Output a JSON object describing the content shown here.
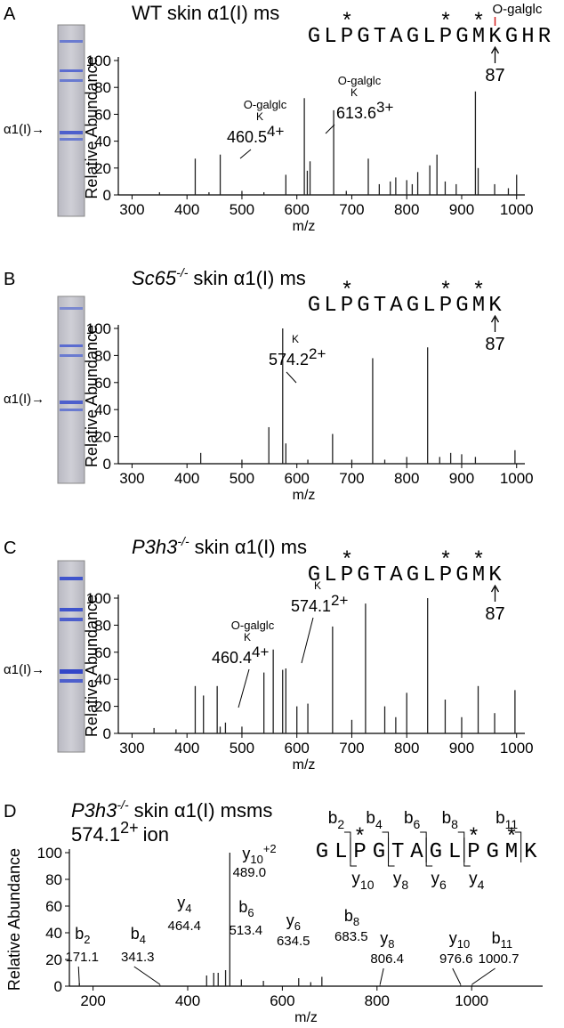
{
  "chart_data": [
    {
      "type": "spectrum",
      "panel": "A",
      "title": {
        "text": "WT skin α1(I) ms"
      },
      "gel_label": "α1(I)→",
      "xlabel": "m/z",
      "ylabel": "Relative Abundance",
      "color": "#222222",
      "xlim": [
        275,
        1015
      ],
      "ylim": [
        0,
        100
      ],
      "xticks": [
        300,
        400,
        500,
        600,
        700,
        800,
        900,
        1000
      ],
      "yticks": [
        0,
        20,
        40,
        60,
        80,
        100
      ],
      "x": [
        350,
        415,
        440,
        460.5,
        500,
        540,
        580,
        613.6,
        619,
        624,
        667,
        690,
        730,
        750,
        770,
        780,
        800,
        810,
        820,
        842,
        855,
        870,
        890,
        925,
        930,
        960,
        985,
        1000
      ],
      "values": [
        2,
        27,
        2,
        30,
        3,
        2,
        15,
        72,
        18,
        25,
        63,
        3,
        27,
        8,
        10,
        13,
        11,
        8,
        17,
        22,
        30,
        10,
        8,
        77,
        20,
        8,
        5,
        15
      ],
      "annotations": [
        {
          "x": 460.5,
          "text": "460.5",
          "charge": "4+",
          "residue": "K",
          "mod": "O-galglc"
        },
        {
          "x": 613.6,
          "text": "613.6",
          "charge": "3+",
          "residue": "K",
          "mod": "O-galglc"
        }
      ],
      "residues": [
        "G",
        "L",
        "P",
        "G",
        "T",
        "A",
        "G",
        "L",
        "P",
        "G",
        "M"
      ],
      "above": [
        null,
        null,
        "*",
        null,
        null,
        null,
        null,
        null,
        "*",
        null,
        "*"
      ],
      "site": {
        "residue": "K",
        "number": "87",
        "mod": "O-galglc",
        "color": "#d42020"
      },
      "tail": [
        "G",
        "H",
        "R"
      ]
    },
    {
      "type": "spectrum",
      "panel": "B",
      "title": {
        "gene": "Sc65",
        "genotype": "-/-",
        "text": "skin α1(I) ms"
      },
      "gel_label": "α1(I)→",
      "xlabel": "m/z",
      "ylabel": "Relative Abundance",
      "color": "#222222",
      "xlim": [
        275,
        1015
      ],
      "ylim": [
        0,
        100
      ],
      "xticks": [
        300,
        400,
        500,
        600,
        700,
        800,
        900,
        1000
      ],
      "yticks": [
        0,
        20,
        40,
        60,
        80,
        100
      ],
      "x": [
        425,
        500,
        549,
        574.2,
        580,
        620,
        665,
        700,
        738,
        760,
        800,
        838,
        860,
        880,
        900,
        925,
        997
      ],
      "values": [
        8,
        3,
        27,
        100,
        15,
        3,
        22,
        3,
        78,
        3,
        5,
        86,
        5,
        8,
        7,
        5,
        10
      ],
      "annotations": [
        {
          "x": 574.2,
          "text": "574.2",
          "charge": "2+",
          "residue": "K"
        }
      ],
      "residues": [
        "G",
        "L",
        "P",
        "G",
        "T",
        "A",
        "G",
        "L",
        "P",
        "G",
        "M"
      ],
      "above": [
        null,
        null,
        "*",
        null,
        null,
        null,
        null,
        null,
        "*",
        null,
        "*"
      ],
      "site": {
        "residue": "K",
        "number": "87",
        "color": "#d42020"
      }
    },
    {
      "type": "spectrum",
      "panel": "C",
      "title": {
        "gene": "P3h3",
        "genotype": "-/-",
        "text": "skin α1(I) ms"
      },
      "gel_label": "α1(I)→",
      "xlabel": "m/z",
      "ylabel": "Relative Abundance",
      "color": "#222222",
      "xlim": [
        275,
        1015
      ],
      "ylim": [
        0,
        100
      ],
      "xticks": [
        300,
        400,
        500,
        600,
        700,
        800,
        900,
        1000
      ],
      "yticks": [
        0,
        20,
        40,
        60,
        80,
        100
      ],
      "x": [
        340,
        380,
        415,
        430,
        455,
        460.4,
        470,
        500,
        540,
        557,
        574.1,
        580,
        600,
        620,
        665,
        700,
        725,
        760,
        780,
        800,
        838,
        870,
        900,
        930,
        960,
        997
      ],
      "values": [
        4,
        3,
        35,
        28,
        35,
        5,
        8,
        5,
        45,
        62,
        47,
        48,
        20,
        22,
        79,
        10,
        96,
        20,
        12,
        30,
        100,
        25,
        12,
        35,
        15,
        32
      ],
      "annotations": [
        {
          "x": 460.4,
          "text": "460.4",
          "charge": "4+",
          "residue": "K",
          "mod": "O-galglc"
        },
        {
          "x": 574.1,
          "text": "574.1",
          "charge": "2+",
          "residue": "K"
        }
      ],
      "residues": [
        "G",
        "L",
        "P",
        "G",
        "T",
        "A",
        "G",
        "L",
        "P",
        "G",
        "M"
      ],
      "above": [
        null,
        null,
        "*",
        null,
        null,
        null,
        null,
        null,
        "*",
        null,
        "*"
      ],
      "site": {
        "residue": "K",
        "number": "87",
        "color": "#d42020"
      }
    },
    {
      "type": "spectrum",
      "panel": "D",
      "title": {
        "gene": "P3h3",
        "genotype": "-/-",
        "text": "skin α1(I) msms"
      },
      "subtitle": {
        "mz": "574.1",
        "charge": "2+",
        "text": "ion"
      },
      "xlabel": "m/z",
      "ylabel": "Relative Abundance",
      "color": "#222222",
      "xlim": [
        150,
        1150
      ],
      "ylim": [
        0,
        100
      ],
      "xticks": [
        200,
        400,
        600,
        800,
        1000
      ],
      "yticks": [
        0,
        20,
        40,
        60,
        80,
        100
      ],
      "x": [
        171.1,
        341.3,
        440,
        455,
        464.4,
        480,
        489.0,
        513.4,
        560,
        634.5,
        660,
        683.5,
        806.4,
        976.6,
        1000.7
      ],
      "values": [
        2,
        1,
        8,
        10,
        10,
        12,
        100,
        5,
        4,
        6,
        3,
        7,
        1,
        1,
        1
      ],
      "fragments": [
        {
          "x": 171.1,
          "ion": "b",
          "sub": "2",
          "text": "171.1"
        },
        {
          "x": 341.3,
          "ion": "b",
          "sub": "4",
          "text": "341.3"
        },
        {
          "x": 464.4,
          "ion": "y",
          "sub": "4",
          "text": "464.4"
        },
        {
          "x": 489.0,
          "ion": "y",
          "sub": "10",
          "sup": "+2",
          "text": "489.0"
        },
        {
          "x": 513.4,
          "ion": "b",
          "sub": "6",
          "text": "513.4"
        },
        {
          "x": 634.5,
          "ion": "y",
          "sub": "6",
          "text": "634.5"
        },
        {
          "x": 683.5,
          "ion": "b",
          "sub": "8",
          "text": "683.5"
        },
        {
          "x": 806.4,
          "ion": "y",
          "sub": "8",
          "text": "806.4"
        },
        {
          "x": 976.6,
          "ion": "y",
          "sub": "10",
          "text": "976.6"
        },
        {
          "x": 1000.7,
          "ion": "b",
          "sub": "11",
          "text": "1000.7"
        }
      ],
      "residues": [
        "G",
        "L",
        "P",
        "G",
        "T",
        "A",
        "G",
        "L",
        "P",
        "G",
        "M"
      ],
      "above": [
        null,
        null,
        "*",
        null,
        null,
        null,
        null,
        null,
        "*",
        null,
        "*"
      ],
      "site": {
        "residue": "K",
        "color": "#d42020"
      },
      "b_ions": [
        {
          "ion": "b",
          "sub": "2"
        },
        {
          "ion": "b",
          "sub": "4"
        },
        {
          "ion": "b",
          "sub": "6"
        },
        {
          "ion": "b",
          "sub": "8"
        },
        {
          "ion": "b",
          "sub": "11"
        }
      ],
      "y_ions": [
        {
          "ion": "y",
          "sub": "10"
        },
        {
          "ion": "y",
          "sub": "8"
        },
        {
          "ion": "y",
          "sub": "6"
        },
        {
          "ion": "y",
          "sub": "4"
        }
      ]
    }
  ]
}
